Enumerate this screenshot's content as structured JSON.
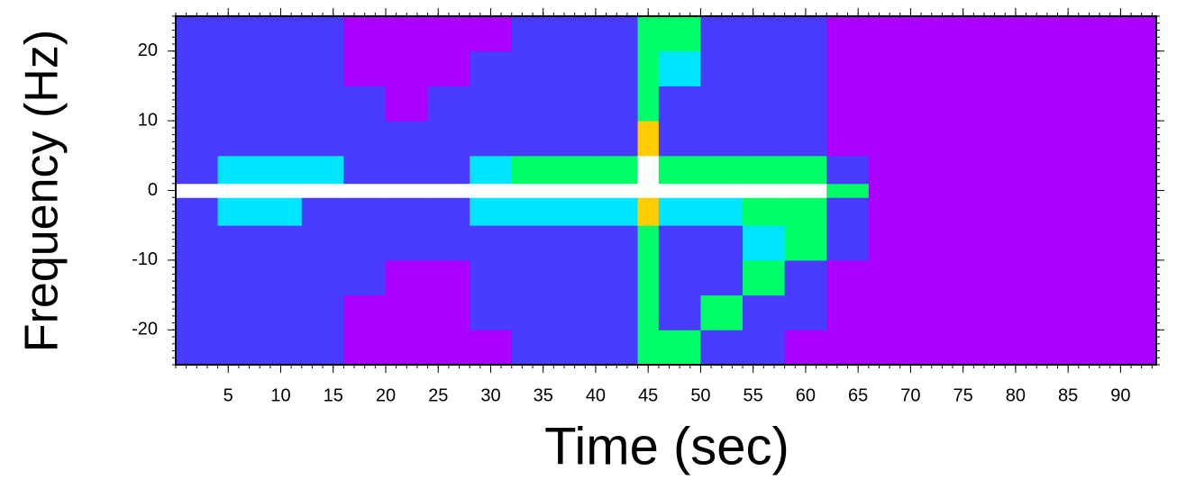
{
  "chart_data": {
    "type": "heatmap",
    "xlabel": "Time (sec)",
    "ylabel": "Frequency (Hz)",
    "xlim": [
      0,
      93.4
    ],
    "ylim": [
      -25,
      25
    ],
    "xticks": [
      5,
      10,
      15,
      20,
      25,
      30,
      35,
      40,
      45,
      50,
      55,
      60,
      65,
      70,
      75,
      80,
      85,
      90
    ],
    "yticks": [
      -20,
      -10,
      0,
      10,
      20
    ],
    "x_minor_step": 1,
    "y_minor_step": 1,
    "x_bins": [
      0,
      4,
      8,
      12,
      16,
      20,
      24,
      28,
      32,
      36,
      40,
      44,
      46,
      50,
      54,
      58,
      62,
      66,
      70,
      74,
      78,
      82,
      86,
      90,
      94
    ],
    "y_bins": [
      -25,
      -20,
      -15,
      -10,
      -5,
      -1,
      1,
      5,
      10,
      15,
      20,
      25
    ],
    "colorscale": [
      "#aa00ff",
      "#4a3cff",
      "#00e5ff",
      "#00ff66",
      "#ffcc00",
      "#ffffff"
    ],
    "z": [
      [
        1,
        1,
        1,
        1,
        0,
        0,
        0,
        0,
        1,
        1,
        1,
        3,
        3,
        1,
        1,
        0,
        0,
        0,
        0,
        0,
        0,
        0,
        0,
        0
      ],
      [
        1,
        1,
        1,
        1,
        0,
        0,
        0,
        1,
        1,
        1,
        1,
        3,
        1,
        3,
        1,
        1,
        0,
        0,
        0,
        0,
        0,
        0,
        0,
        0
      ],
      [
        1,
        1,
        1,
        1,
        1,
        0,
        0,
        1,
        1,
        1,
        1,
        3,
        1,
        1,
        3,
        1,
        0,
        0,
        0,
        0,
        0,
        0,
        0,
        0
      ],
      [
        1,
        1,
        1,
        1,
        1,
        1,
        1,
        1,
        1,
        1,
        1,
        3,
        1,
        1,
        2,
        3,
        1,
        0,
        0,
        0,
        0,
        0,
        0,
        0
      ],
      [
        1,
        2,
        2,
        1,
        1,
        1,
        1,
        2,
        2,
        2,
        2,
        4,
        2,
        2,
        3,
        3,
        1,
        0,
        0,
        0,
        0,
        0,
        0,
        0
      ],
      [
        5,
        5,
        5,
        5,
        5,
        5,
        5,
        5,
        5,
        5,
        5,
        5,
        5,
        5,
        5,
        5,
        3,
        0,
        0,
        0,
        0,
        0,
        0,
        0
      ],
      [
        1,
        2,
        2,
        2,
        1,
        1,
        1,
        2,
        3,
        3,
        3,
        5,
        3,
        3,
        3,
        3,
        1,
        0,
        0,
        0,
        0,
        0,
        0,
        0
      ],
      [
        1,
        1,
        1,
        1,
        1,
        1,
        1,
        1,
        1,
        1,
        1,
        4,
        1,
        1,
        1,
        1,
        0,
        0,
        0,
        0,
        0,
        0,
        0,
        0
      ],
      [
        1,
        1,
        1,
        1,
        1,
        0,
        1,
        1,
        1,
        1,
        1,
        3,
        1,
        1,
        1,
        1,
        0,
        0,
        0,
        0,
        0,
        0,
        0,
        0
      ],
      [
        1,
        1,
        1,
        1,
        0,
        0,
        0,
        1,
        1,
        1,
        1,
        3,
        2,
        1,
        1,
        1,
        0,
        0,
        0,
        0,
        0,
        0,
        0,
        0
      ],
      [
        1,
        1,
        1,
        1,
        0,
        0,
        0,
        0,
        1,
        1,
        1,
        3,
        3,
        1,
        1,
        1,
        0,
        0,
        0,
        0,
        0,
        0,
        0,
        0
      ]
    ]
  }
}
